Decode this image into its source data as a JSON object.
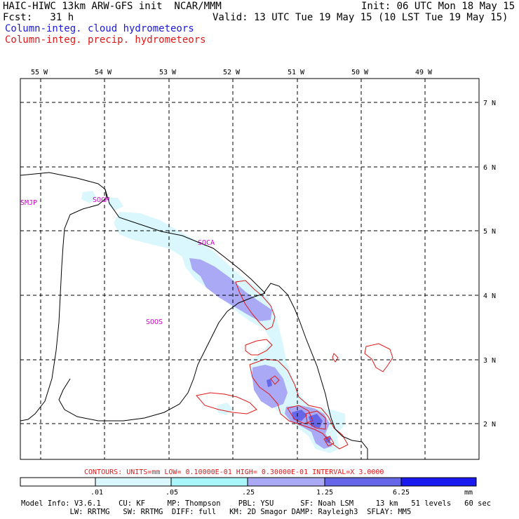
{
  "header": {
    "line1_left": "HAIC-HIWC 13km ARW-GFS init  NCAR/MMM",
    "line1_right": "Init: 06 UTC Mon 18 May 15",
    "line2_left": "Fcst:   31 h",
    "line2_right": "Valid: 13 UTC Tue 19 May 15 (10 LST Tue 19 May 15)",
    "field_cloud": "Column-integ. cloud hydrometeors",
    "field_precip": "Column-integ. precip. hydrometeors"
  },
  "map": {
    "lon_labels": [
      "55 W",
      "54 W",
      "53 W",
      "52 W",
      "51 W",
      "50 W",
      "49 W"
    ],
    "lat_labels": [
      "7 N",
      "6 N",
      "5 N",
      "4 N",
      "3 N",
      "2 N"
    ],
    "station_labels": [
      "SMJP",
      "SOCM",
      "SOCA",
      "SOOS"
    ],
    "colors": {
      "cloud_light": "#d9f7fc",
      "cloud_mid": "#a9a9f5",
      "cloud_dark": "#6666e8",
      "cloud_darkest": "#1a1af0",
      "precip_contour": "#e01818",
      "station": "#cc00cc",
      "coast": "#000000"
    }
  },
  "contour_note": "CONTOURS:  UNITS=mm  LOW= 0.10000E-01  HIGH= 0.30000E-01  INTERVAL=X  3.0000",
  "colorbar": {
    "ticks": [
      ".01",
      ".05",
      ".25",
      "1.25",
      "6.25"
    ],
    "units": "mm",
    "fills": [
      "#ffffff",
      "#d9f7fc",
      "#a9f5fc",
      "#a9a9f5",
      "#6666e8",
      "#1a1af0"
    ]
  },
  "model_info": {
    "line1": "Model Info: V3.6.1    CU: KF     MP: Thompson    PBL: YSU      SF: Noah LSM     13 km   51 levels   60 sec",
    "line2": "           LW: RRTMG   SW: RRTMG  DIFF: full   KM: 2D Smagor DAMP: Rayleigh3  SFLAY: MM5"
  }
}
